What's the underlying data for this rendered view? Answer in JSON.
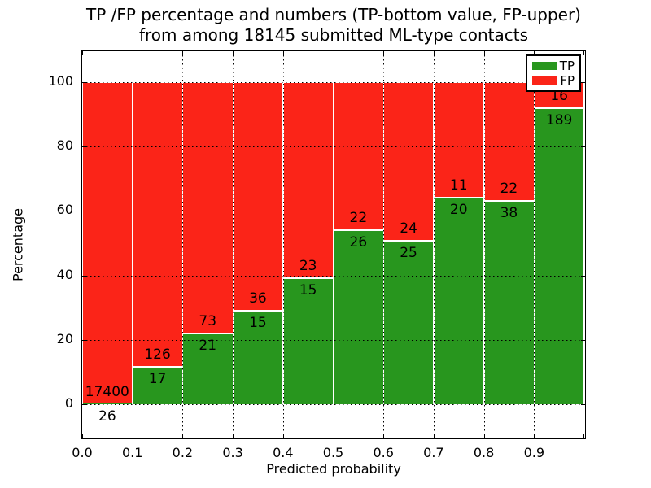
{
  "figure": {
    "title_line1": "TP /FP percentage and numbers (TP-bottom value, FP-upper)",
    "title_line2": "from among 18145 submitted ML-type contacts"
  },
  "axes": {
    "xlabel": "Predicted probability",
    "ylabel": "Percentage",
    "x_tick_labels": [
      "0.0",
      "0.1",
      "0.2",
      "0.3",
      "0.4",
      "0.5",
      "0.6",
      "0.7",
      "0.8",
      "0.9"
    ],
    "y_tick_labels": [
      "0",
      "20",
      "40",
      "60",
      "80",
      "100"
    ]
  },
  "legend": {
    "entries": [
      {
        "label": "TP",
        "color": "#28961e"
      },
      {
        "label": "FP",
        "color": "#fb2418"
      }
    ]
  },
  "chart_data": {
    "type": "bar",
    "stacked": true,
    "title": "TP /FP percentage and numbers (TP-bottom value, FP-upper) from among 18145 submitted ML-type contacts",
    "xlabel": "Predicted probability",
    "ylabel": "Percentage",
    "xlim": [
      0.0,
      1.0
    ],
    "ylim": [
      -11,
      110
    ],
    "grid": true,
    "legend_position": "upper right",
    "total_contacts": 18145,
    "categories": [
      "0.0-0.1",
      "0.1-0.2",
      "0.2-0.3",
      "0.3-0.4",
      "0.4-0.5",
      "0.5-0.6",
      "0.6-0.7",
      "0.7-0.8",
      "0.8-0.9",
      "0.9-1.0"
    ],
    "x_ticks": [
      0.0,
      0.1,
      0.2,
      0.3,
      0.4,
      0.5,
      0.6,
      0.7,
      0.8,
      0.9
    ],
    "y_ticks": [
      0,
      20,
      40,
      60,
      80,
      100
    ],
    "series": [
      {
        "name": "TP",
        "color": "#28961e",
        "counts": [
          26,
          17,
          21,
          15,
          15,
          26,
          25,
          20,
          38,
          189
        ],
        "pct": [
          0.15,
          11.89,
          22.34,
          29.41,
          39.47,
          54.17,
          51.02,
          64.52,
          63.33,
          92.2
        ]
      },
      {
        "name": "FP",
        "color": "#fb2418",
        "counts": [
          17400,
          126,
          73,
          36,
          23,
          22,
          24,
          11,
          22,
          16
        ],
        "pct": [
          99.85,
          88.11,
          77.66,
          70.59,
          60.53,
          45.83,
          48.98,
          35.48,
          36.67,
          7.8
        ]
      }
    ]
  }
}
